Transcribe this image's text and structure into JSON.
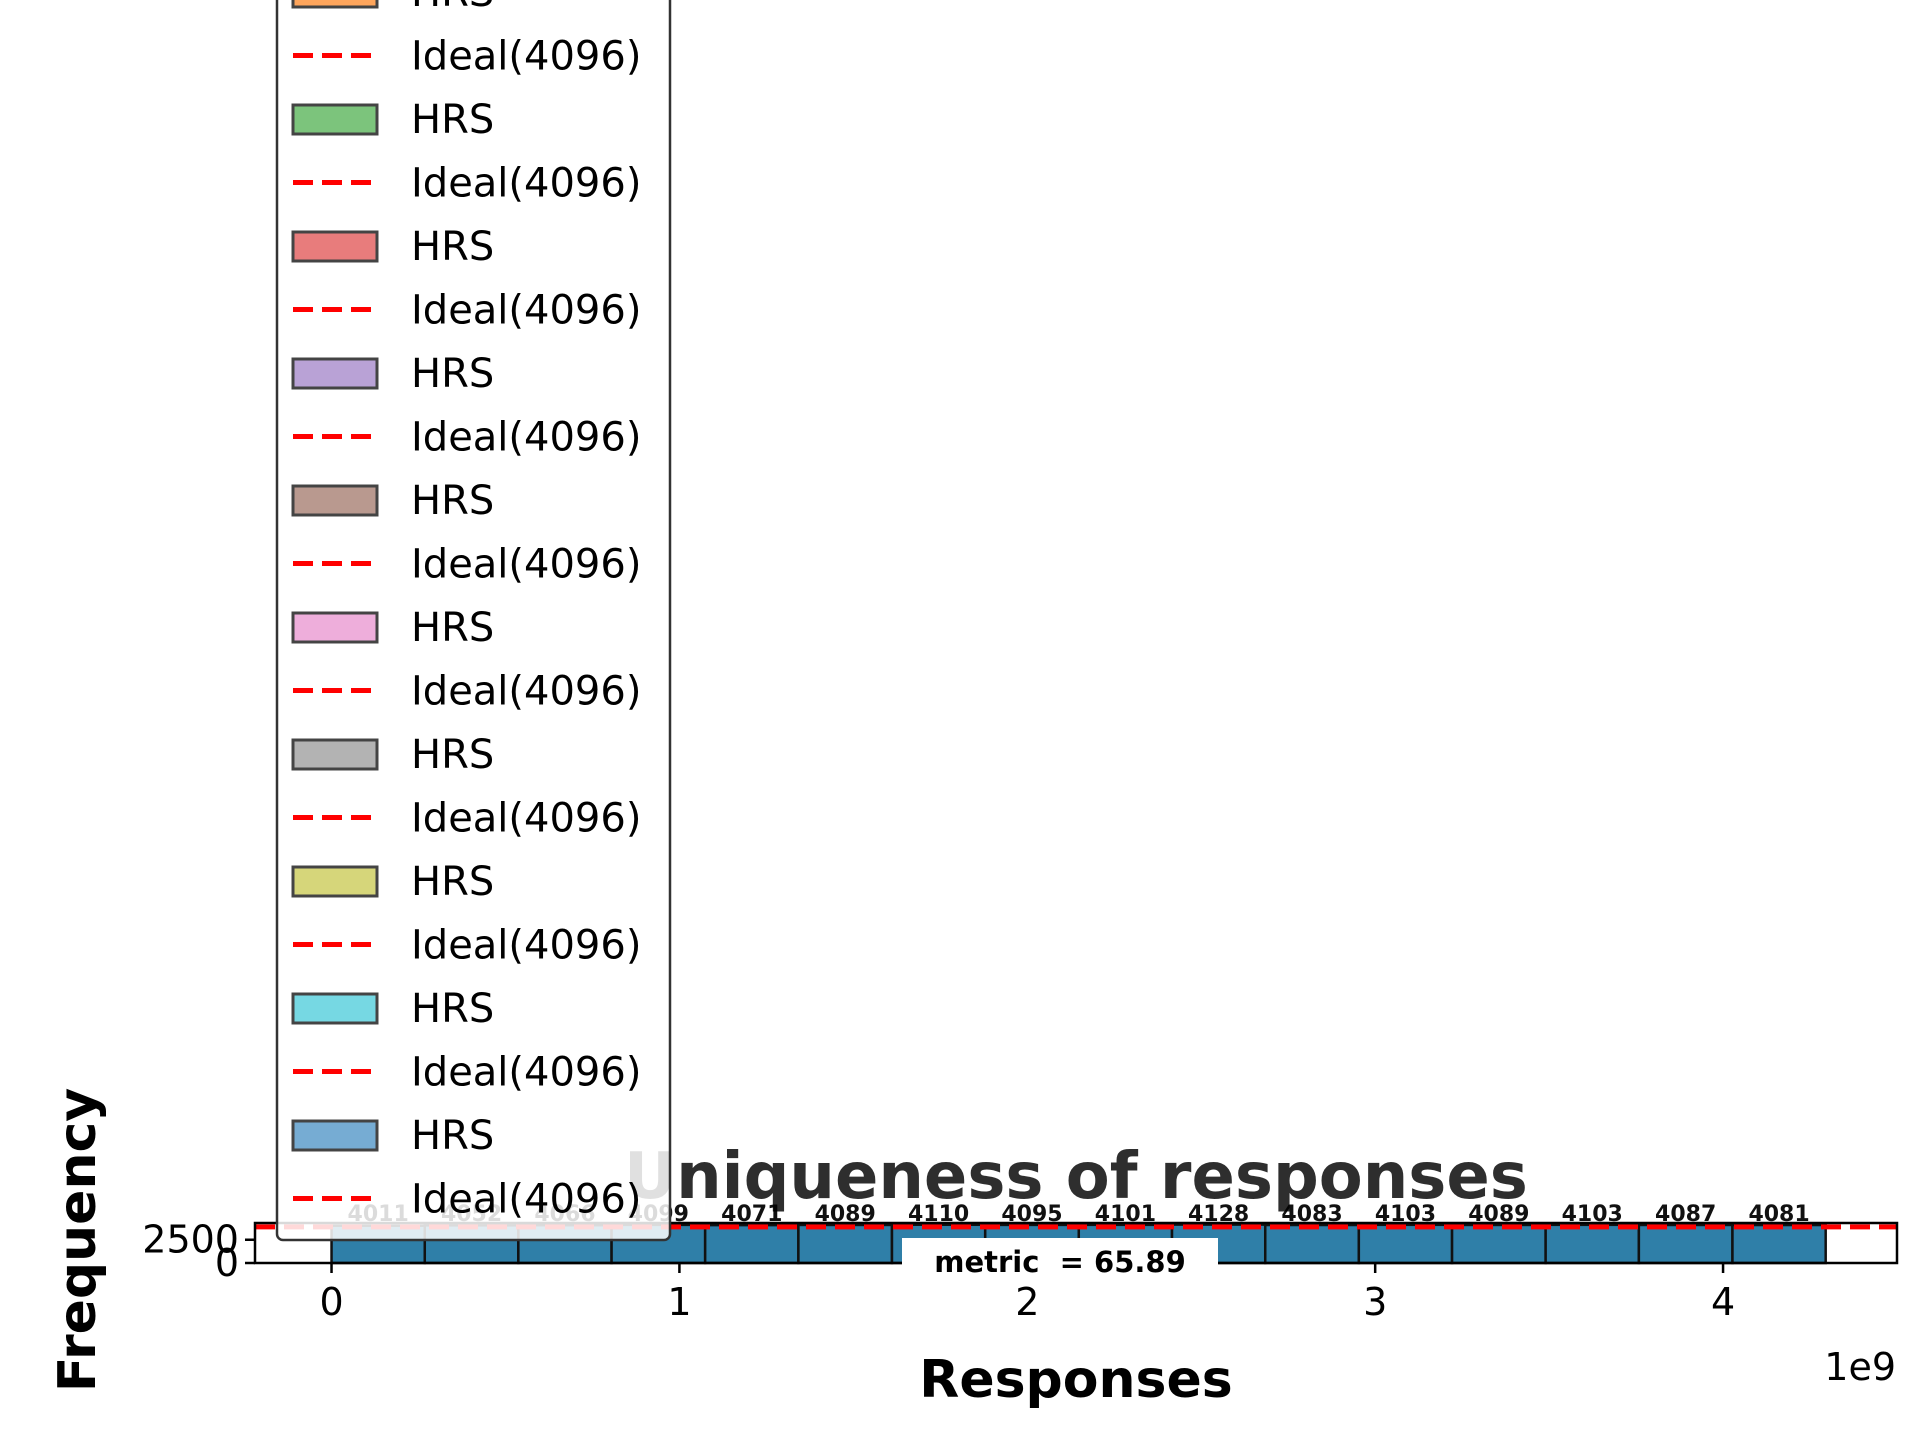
{
  "chart_data": {
    "type": "bar",
    "title": "Uniqueness of responses",
    "xlabel": "Responses",
    "ylabel": "Frequency",
    "x_offset_label": "1e9",
    "xlim": [
      -0.22,
      4.5
    ],
    "ylim": [
      0,
      4300
    ],
    "x_ticks": [
      {
        "value": 0,
        "label": "0"
      },
      {
        "value": 1,
        "label": "1"
      },
      {
        "value": 2,
        "label": "2"
      },
      {
        "value": 3,
        "label": "3"
      },
      {
        "value": 4,
        "label": "4"
      }
    ],
    "y_ticks": [
      {
        "value": 0,
        "label": "0"
      },
      {
        "value": 2500,
        "label": "2500"
      }
    ],
    "bin_edges": [
      0,
      0.268,
      0.537,
      0.805,
      1.074,
      1.342,
      1.611,
      1.879,
      2.148,
      2.416,
      2.684,
      2.953,
      3.221,
      3.49,
      3.758,
      4.027,
      4.295
    ],
    "series": [
      {
        "name": "HRS",
        "color": "#2f7fa8",
        "values": [
          4011,
          4052,
          4066,
          4099,
          4071,
          4089,
          4110,
          4095,
          4101,
          4128,
          4083,
          4103,
          4089,
          4103,
          4087,
          4081
        ]
      }
    ],
    "bar_labels": [
      "4011",
      "4052",
      "4066",
      "4099",
      "4071",
      "4089",
      "4110",
      "4095",
      "4101",
      "4128",
      "4083",
      "4103",
      "4089",
      "4103",
      "4087",
      "4081"
    ],
    "reference_line": {
      "label": "Ideal(4096)",
      "value": 4096,
      "color": "#ff0000",
      "style": "dashed"
    },
    "annotation": "metric  = 65.89",
    "legend": {
      "placement": "upper-left",
      "entries": [
        {
          "label": "HRS",
          "kind": "patch",
          "color": "#ffa65c"
        },
        {
          "label": "Ideal(4096)",
          "kind": "line",
          "color": "#ff0000"
        },
        {
          "label": "HRS",
          "kind": "patch",
          "color": "#7cc47c"
        },
        {
          "label": "Ideal(4096)",
          "kind": "line",
          "color": "#ff0000"
        },
        {
          "label": "HRS",
          "kind": "patch",
          "color": "#e87c7c"
        },
        {
          "label": "Ideal(4096)",
          "kind": "line",
          "color": "#ff0000"
        },
        {
          "label": "HRS",
          "kind": "patch",
          "color": "#b9a2d6"
        },
        {
          "label": "Ideal(4096)",
          "kind": "line",
          "color": "#ff0000"
        },
        {
          "label": "HRS",
          "kind": "patch",
          "color": "#b9998f"
        },
        {
          "label": "Ideal(4096)",
          "kind": "line",
          "color": "#ff0000"
        },
        {
          "label": "HRS",
          "kind": "patch",
          "color": "#eeaedb"
        },
        {
          "label": "Ideal(4096)",
          "kind": "line",
          "color": "#ff0000"
        },
        {
          "label": "HRS",
          "kind": "patch",
          "color": "#b3b3b3"
        },
        {
          "label": "Ideal(4096)",
          "kind": "line",
          "color": "#ff0000"
        },
        {
          "label": "HRS",
          "kind": "patch",
          "color": "#d6d67a"
        },
        {
          "label": "Ideal(4096)",
          "kind": "line",
          "color": "#ff0000"
        },
        {
          "label": "HRS",
          "kind": "patch",
          "color": "#76d8e3"
        },
        {
          "label": "Ideal(4096)",
          "kind": "line",
          "color": "#ff0000"
        },
        {
          "label": "HRS",
          "kind": "patch",
          "color": "#76acd3"
        },
        {
          "label": "Ideal(4096)",
          "kind": "line",
          "color": "#ff0000"
        }
      ]
    }
  }
}
